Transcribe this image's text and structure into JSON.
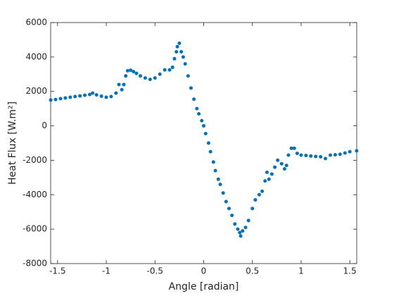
{
  "chart_data": {
    "type": "scatter",
    "xlabel": "Angle [radian]",
    "ylabel": "Heat Flux [W.m²]",
    "color": "#0072bd",
    "xlim": [
      -1.5708,
      1.5708
    ],
    "ylim": [
      -8000,
      6000
    ],
    "xticks": [
      -1.5,
      -1,
      -0.5,
      0,
      0.5,
      1,
      1.5
    ],
    "yticks": [
      -8000,
      -6000,
      -4000,
      -2000,
      0,
      2000,
      4000,
      6000
    ],
    "x": [
      -1.57,
      -1.52,
      -1.47,
      -1.42,
      -1.37,
      -1.32,
      -1.27,
      -1.22,
      -1.17,
      -1.14,
      -1.1,
      -1.05,
      -1.0,
      -0.95,
      -0.9,
      -0.87,
      -0.84,
      -0.82,
      -0.8,
      -0.78,
      -0.75,
      -0.72,
      -0.69,
      -0.65,
      -0.6,
      -0.55,
      -0.5,
      -0.45,
      -0.4,
      -0.35,
      -0.32,
      -0.3,
      -0.28,
      -0.27,
      -0.25,
      -0.23,
      -0.21,
      -0.19,
      -0.16,
      -0.13,
      -0.1,
      -0.07,
      -0.05,
      -0.02,
      0.0,
      0.02,
      0.05,
      0.07,
      0.1,
      0.12,
      0.15,
      0.17,
      0.2,
      0.23,
      0.26,
      0.29,
      0.32,
      0.35,
      0.37,
      0.38,
      0.4,
      0.43,
      0.46,
      0.5,
      0.53,
      0.57,
      0.6,
      0.63,
      0.65,
      0.67,
      0.7,
      0.73,
      0.76,
      0.8,
      0.83,
      0.85,
      0.87,
      0.9,
      0.93,
      0.96,
      1.0,
      1.05,
      1.1,
      1.15,
      1.2,
      1.25,
      1.3,
      1.35,
      1.4,
      1.45,
      1.5,
      1.57
    ],
    "y": [
      1500,
      1530,
      1580,
      1620,
      1660,
      1700,
      1740,
      1780,
      1820,
      1900,
      1800,
      1720,
      1660,
      1700,
      1900,
      2400,
      2100,
      2400,
      2900,
      3200,
      3230,
      3150,
      3050,
      2900,
      2780,
      2700,
      2780,
      3000,
      3250,
      3250,
      3400,
      3900,
      4300,
      4600,
      4800,
      4300,
      4000,
      3600,
      2900,
      2200,
      1550,
      1000,
      700,
      300,
      0,
      -450,
      -1000,
      -1500,
      -2100,
      -2600,
      -3100,
      -3400,
      -3900,
      -4400,
      -4800,
      -5200,
      -5700,
      -6000,
      -6200,
      -6400,
      -6100,
      -5900,
      -5500,
      -4800,
      -4300,
      -4000,
      -3800,
      -3200,
      -2700,
      -3100,
      -2800,
      -2400,
      -2000,
      -2200,
      -2500,
      -2300,
      -1700,
      -1300,
      -1300,
      -1600,
      -1700,
      -1720,
      -1750,
      -1780,
      -1800,
      -1900,
      -1700,
      -1680,
      -1650,
      -1580,
      -1500,
      -1450
    ]
  }
}
